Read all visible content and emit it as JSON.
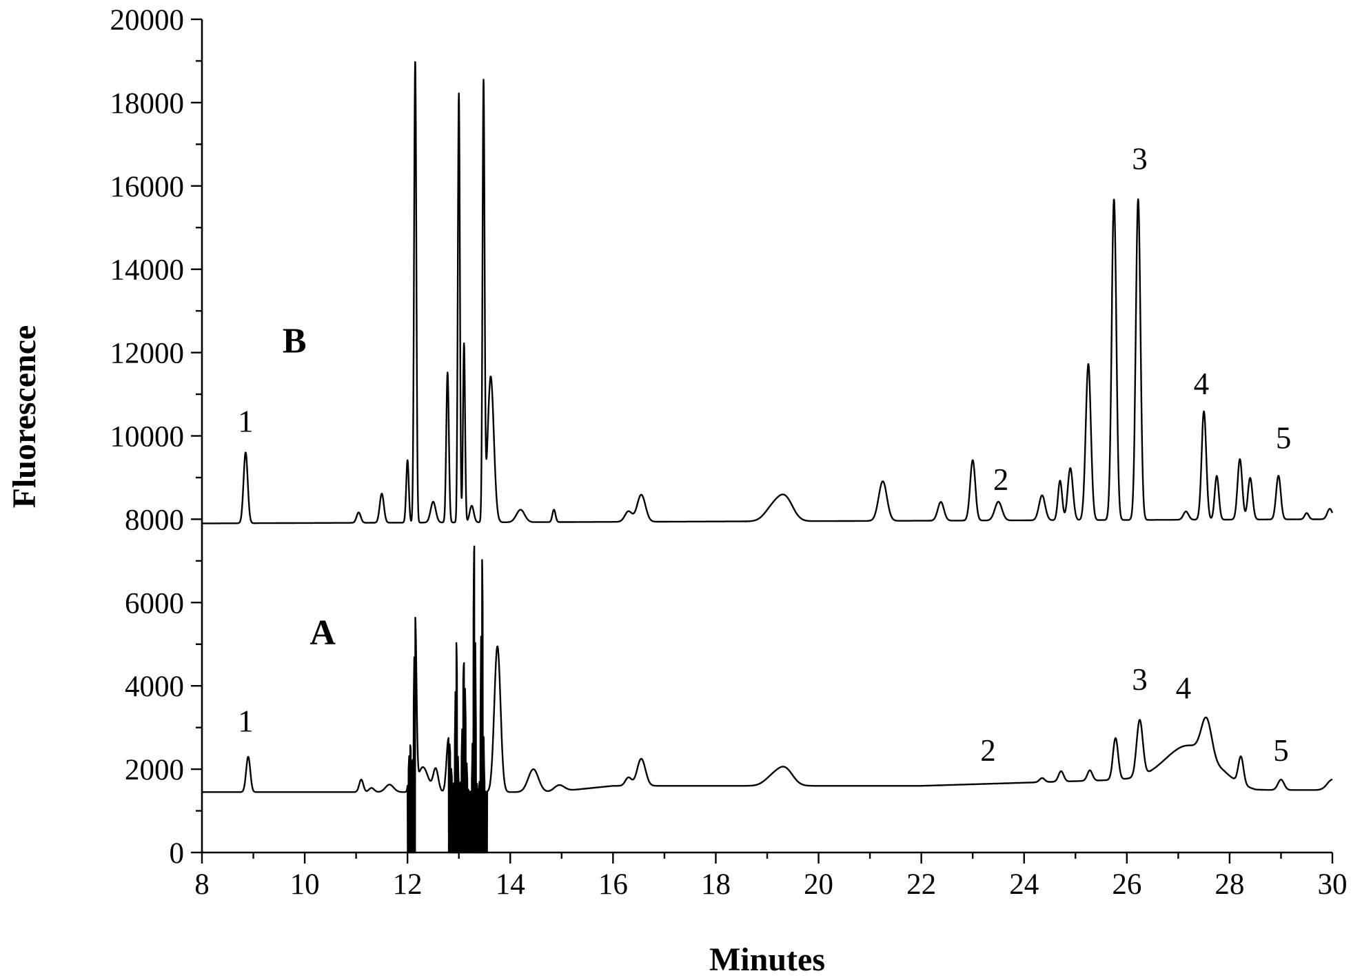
{
  "chart_data": {
    "type": "line",
    "xlabel": "Minutes",
    "ylabel": "Fluorescence",
    "xlim": [
      8,
      30
    ],
    "ylim": [
      0,
      20000
    ],
    "x_ticks": [
      8,
      10,
      12,
      14,
      16,
      18,
      20,
      22,
      24,
      26,
      28,
      30
    ],
    "y_ticks": [
      0,
      2000,
      4000,
      6000,
      8000,
      10000,
      12000,
      14000,
      16000,
      18000,
      20000
    ],
    "grid": false,
    "series": [
      {
        "name": "A",
        "baseline": 1450,
        "peaks": [
          [
            8.9,
            850,
            0.04
          ],
          [
            11.1,
            300,
            0.04
          ],
          [
            11.3,
            100,
            0.05
          ],
          [
            11.65,
            180,
            0.08
          ],
          [
            12.05,
            1100,
            0.025
          ],
          [
            12.15,
            4000,
            0.025
          ],
          [
            12.3,
            600,
            0.1
          ],
          [
            12.55,
            550,
            0.05
          ],
          [
            12.8,
            1300,
            0.04
          ],
          [
            12.95,
            3600,
            0.02
          ],
          [
            13.1,
            3100,
            0.03
          ],
          [
            13.3,
            5900,
            0.02
          ],
          [
            13.45,
            5600,
            0.02
          ],
          [
            13.75,
            3500,
            0.06
          ],
          [
            14.45,
            550,
            0.1
          ],
          [
            14.95,
            150,
            0.1
          ],
          [
            16.3,
            200,
            0.06
          ],
          [
            16.55,
            650,
            0.08
          ],
          [
            19.1,
            200,
            0.15
          ],
          [
            19.35,
            400,
            0.15
          ],
          [
            24.35,
            100,
            0.05
          ],
          [
            24.72,
            250,
            0.05
          ],
          [
            25.28,
            250,
            0.05
          ],
          [
            25.78,
            1000,
            0.05
          ],
          [
            26.25,
            1350,
            0.06
          ],
          [
            27.2,
            850,
            0.45
          ],
          [
            27.55,
            900,
            0.1
          ],
          [
            28.22,
            650,
            0.05
          ],
          [
            29.0,
            250,
            0.06
          ],
          [
            30.0,
            250,
            0.1
          ]
        ],
        "drift": [
          [
            8,
            0
          ],
          [
            14.8,
            0
          ],
          [
            16.0,
            150
          ],
          [
            19.0,
            150
          ],
          [
            22.0,
            150
          ],
          [
            26.0,
            300
          ],
          [
            27.9,
            250
          ],
          [
            28.5,
            50
          ],
          [
            30,
            50
          ]
        ],
        "clip": [
          [
            12.0,
            12.15
          ],
          [
            12.8,
            13.55
          ]
        ]
      },
      {
        "name": "B",
        "baseline": 7900,
        "peaks": [
          [
            8.85,
            1700,
            0.04
          ],
          [
            11.05,
            250,
            0.04
          ],
          [
            11.5,
            700,
            0.04
          ],
          [
            12.0,
            1500,
            0.025
          ],
          [
            12.15,
            11100,
            0.022
          ],
          [
            12.5,
            500,
            0.05
          ],
          [
            12.78,
            3600,
            0.025
          ],
          [
            13.0,
            10300,
            0.02
          ],
          [
            13.1,
            4300,
            0.02
          ],
          [
            13.25,
            400,
            0.04
          ],
          [
            13.48,
            10400,
            0.02
          ],
          [
            13.62,
            3500,
            0.06
          ],
          [
            14.2,
            300,
            0.08
          ],
          [
            14.85,
            300,
            0.03
          ],
          [
            16.3,
            250,
            0.07
          ],
          [
            16.55,
            650,
            0.08
          ],
          [
            19.1,
            300,
            0.15
          ],
          [
            19.35,
            550,
            0.15
          ],
          [
            21.25,
            950,
            0.08
          ],
          [
            22.38,
            450,
            0.06
          ],
          [
            23.0,
            1450,
            0.05
          ],
          [
            23.5,
            450,
            0.07
          ],
          [
            24.35,
            600,
            0.06
          ],
          [
            24.7,
            950,
            0.04
          ],
          [
            24.9,
            1250,
            0.05
          ],
          [
            25.25,
            3750,
            0.05
          ],
          [
            25.75,
            7700,
            0.045
          ],
          [
            26.22,
            7700,
            0.045
          ],
          [
            27.15,
            200,
            0.05
          ],
          [
            27.5,
            2600,
            0.045
          ],
          [
            27.75,
            1050,
            0.04
          ],
          [
            28.2,
            1450,
            0.045
          ],
          [
            28.4,
            1000,
            0.045
          ],
          [
            28.95,
            1050,
            0.045
          ],
          [
            29.5,
            150,
            0.04
          ],
          [
            29.95,
            250,
            0.05
          ]
        ],
        "drift": [
          [
            8,
            0
          ],
          [
            30,
            100
          ]
        ],
        "clip": []
      }
    ],
    "annotations": [
      {
        "text": "B",
        "x": 9.8,
        "y": 12000,
        "style": "trace"
      },
      {
        "text": "A",
        "x": 10.35,
        "y": 5000,
        "style": "trace"
      },
      {
        "text": "1",
        "x": 8.85,
        "y": 10100,
        "style": "peak"
      },
      {
        "text": "2",
        "x": 23.55,
        "y": 8700,
        "style": "peak"
      },
      {
        "text": "3",
        "x": 26.25,
        "y": 16400,
        "style": "peak"
      },
      {
        "text": "4",
        "x": 27.45,
        "y": 11000,
        "style": "peak"
      },
      {
        "text": "5",
        "x": 29.05,
        "y": 9700,
        "style": "peak"
      },
      {
        "text": "1",
        "x": 8.85,
        "y": 2900,
        "style": "peak"
      },
      {
        "text": "2",
        "x": 23.3,
        "y": 2200,
        "style": "peak"
      },
      {
        "text": "3",
        "x": 26.25,
        "y": 3900,
        "style": "peak"
      },
      {
        "text": "4",
        "x": 27.1,
        "y": 3700,
        "style": "peak"
      },
      {
        "text": "5",
        "x": 29.0,
        "y": 2200,
        "style": "peak"
      }
    ]
  }
}
